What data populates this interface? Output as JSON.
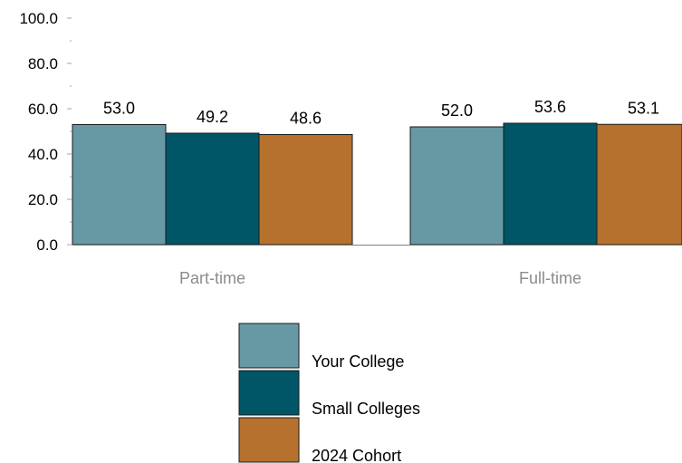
{
  "chart_data": {
    "type": "bar",
    "title": "",
    "xlabel": "",
    "ylabel": "",
    "categories": [
      "Part-time",
      "Full-time"
    ],
    "series": [
      {
        "name": "Your College",
        "values": [
          53.0,
          52.0
        ],
        "labels": [
          "53.0",
          "52.0"
        ],
        "color": "#6699a3"
      },
      {
        "name": "Small Colleges",
        "values": [
          49.2,
          53.6
        ],
        "labels": [
          "49.2",
          "53.6"
        ],
        "color": "#005566"
      },
      {
        "name": "2024 Cohort",
        "values": [
          48.6,
          53.1
        ],
        "labels": [
          "48.6",
          "53.1"
        ],
        "color": "#b5712d"
      }
    ],
    "ylim": [
      0,
      100
    ],
    "yticks": [
      0,
      20,
      40,
      60,
      80,
      100
    ],
    "ytick_labels": [
      "0.0",
      "20.0",
      "40.0",
      "60.0",
      "80.0",
      "100.0"
    ],
    "grid": false,
    "legend_position": "bottom-center"
  }
}
